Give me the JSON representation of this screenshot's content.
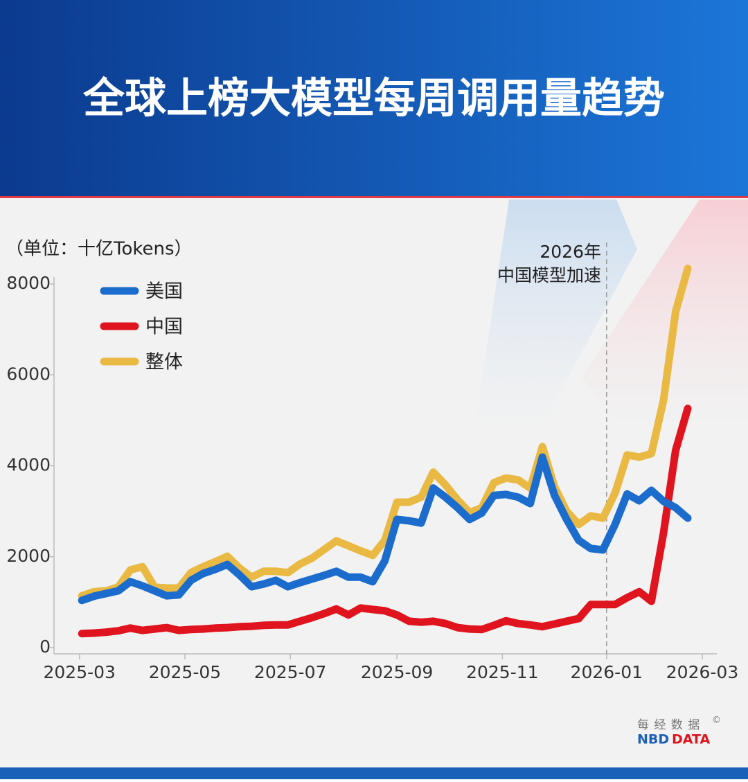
{
  "chart_data": {
    "type": "line",
    "title": "全球上榜大模型每周调用量趋势",
    "y_label": "（单位：十亿Tokens）",
    "annotation": {
      "x": 43.3,
      "lines": [
        "2026年",
        "中国模型加速"
      ]
    },
    "source": {
      "cn": "每 经 数 据",
      "mark": "©",
      "brand": "NBD",
      "brand2": "DATA"
    },
    "legend": "upper left",
    "x": [
      0,
      1,
      2,
      3,
      4,
      5,
      6,
      7,
      8,
      9,
      10,
      11,
      12,
      13,
      14,
      15,
      16,
      17,
      18,
      19,
      20,
      21,
      22,
      23,
      24,
      25,
      26,
      27,
      28,
      29,
      30,
      31,
      32,
      33,
      34,
      35,
      36,
      37,
      38,
      39,
      40,
      41,
      42,
      43,
      44,
      45,
      46,
      47,
      48,
      49,
      50
    ],
    "xlim": [
      -2.3,
      52.4
    ],
    "xticks": [
      {
        "value": -0.2,
        "label": "2025-03"
      },
      {
        "value": 8.5,
        "label": "2025-05"
      },
      {
        "value": 17.2,
        "label": "2025-07"
      },
      {
        "value": 26.0,
        "label": "2025-09"
      },
      {
        "value": 34.7,
        "label": "2025-11"
      },
      {
        "value": 43.3,
        "label": "2026-01"
      },
      {
        "value": 51.2,
        "label": "2026-03"
      }
    ],
    "ylim": [
      0,
      8000
    ],
    "yticks": [
      0,
      2000,
      4000,
      6000,
      8000
    ],
    "series": [
      {
        "name": "美国",
        "color": "#1b6ccc",
        "values": [
          1040,
          1130,
          1190,
          1250,
          1450,
          1360,
          1250,
          1140,
          1160,
          1480,
          1630,
          1720,
          1830,
          1600,
          1340,
          1400,
          1480,
          1340,
          1430,
          1510,
          1590,
          1680,
          1550,
          1550,
          1450,
          1910,
          2820,
          2790,
          2740,
          3510,
          3310,
          3080,
          2820,
          2960,
          3350,
          3370,
          3310,
          3170,
          4190,
          3350,
          2820,
          2360,
          2180,
          2150,
          2710,
          3380,
          3230,
          3460,
          3220,
          3080,
          2850
        ]
      },
      {
        "name": "中国",
        "color": "#e0141e",
        "values": [
          310,
          320,
          340,
          370,
          430,
          380,
          410,
          440,
          380,
          400,
          410,
          430,
          440,
          460,
          470,
          490,
          500,
          500,
          580,
          660,
          750,
          850,
          720,
          870,
          840,
          810,
          720,
          580,
          560,
          580,
          530,
          440,
          410,
          400,
          490,
          590,
          530,
          500,
          460,
          520,
          580,
          640,
          950,
          950,
          950,
          1100,
          1230,
          1020,
          2520,
          4340,
          5260
        ]
      },
      {
        "name": "整体",
        "color": "#e9b944",
        "values": [
          1140,
          1230,
          1250,
          1330,
          1710,
          1780,
          1330,
          1310,
          1310,
          1650,
          1780,
          1890,
          2010,
          1750,
          1550,
          1680,
          1680,
          1650,
          1840,
          1970,
          2160,
          2350,
          2240,
          2130,
          2030,
          2360,
          3200,
          3200,
          3310,
          3860,
          3580,
          3250,
          2970,
          3080,
          3630,
          3730,
          3690,
          3510,
          4420,
          3540,
          3000,
          2710,
          2900,
          2850,
          3400,
          4240,
          4190,
          4270,
          5440,
          7390,
          8340
        ]
      }
    ]
  }
}
